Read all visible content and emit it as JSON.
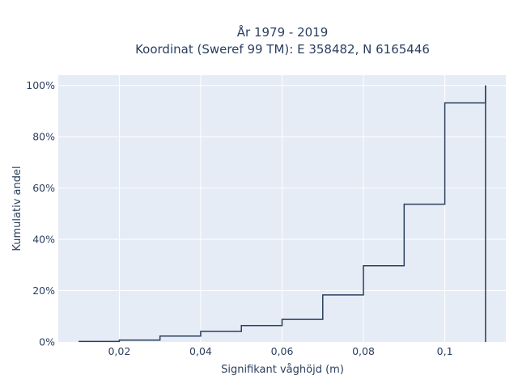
{
  "chart_data": {
    "type": "line",
    "subtype": "cumulative-step",
    "title_lines": [
      "År 1979 - 2019",
      "Koordinat (Sweref 99 TM): E 358482, N 6165446"
    ],
    "xlabel": "Signifikant våghöjd (m)",
    "ylabel": "Kumulativ andel",
    "xlim": [
      0.005,
      0.115
    ],
    "ylim": [
      0,
      1.04
    ],
    "x_ticks": [
      {
        "value": 0.02,
        "label": "0,02"
      },
      {
        "value": 0.04,
        "label": "0,04"
      },
      {
        "value": 0.06,
        "label": "0,06"
      },
      {
        "value": 0.08,
        "label": "0,08"
      },
      {
        "value": 0.1,
        "label": "0,1"
      }
    ],
    "y_ticks": [
      {
        "value": 0,
        "label": "0%"
      },
      {
        "value": 0.2,
        "label": "20%"
      },
      {
        "value": 0.4,
        "label": "40%"
      },
      {
        "value": 0.6,
        "label": "60%"
      },
      {
        "value": 0.8,
        "label": "80%"
      },
      {
        "value": 1.0,
        "label": "100%"
      }
    ],
    "steps": {
      "x": [
        0.01,
        0.02,
        0.03,
        0.04,
        0.05,
        0.06,
        0.07,
        0.08,
        0.09,
        0.1,
        0.11
      ],
      "y": [
        0.002,
        0.007,
        0.023,
        0.041,
        0.064,
        0.088,
        0.183,
        0.297,
        0.537,
        0.932,
        1.0
      ]
    },
    "vertical_line_x": 0.11,
    "grid": true,
    "colors": {
      "plot_bg": "#e5ecf6",
      "grid": "#ffffff",
      "line": "#2a3f5f",
      "text": "#2a3f5f"
    }
  }
}
